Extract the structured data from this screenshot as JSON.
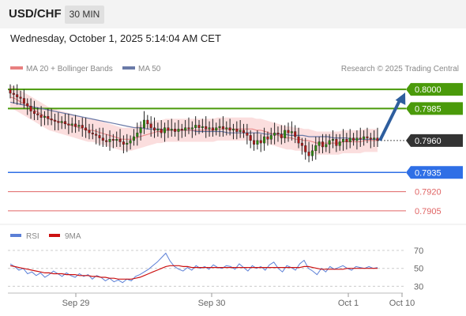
{
  "header": {
    "pair": "USD/CHF",
    "timeframe": "30 MIN"
  },
  "datetime": "Wednesday, October 1, 2025 5:14:04 AM CET",
  "legend": {
    "ma20_label": "MA 20 + Bollinger Bands",
    "ma50_label": "MA 50",
    "credit": "Research © 2025 Trading Central"
  },
  "rsi_legend": {
    "rsi_label": "RSI",
    "ma_label": "9MA"
  },
  "colors": {
    "green": "#4a9a0a",
    "blue": "#2f6fe6",
    "red": "#e06464",
    "ma20": "#e88080",
    "ma50": "#6a7aa8",
    "rsi": "#5b7fd6",
    "rsi_ma": "#cc1111",
    "band": "#f9d3d3",
    "candle_up": "#2e8b10",
    "candle_down": "#b01818",
    "arrow": "#2e5e9e",
    "price_box": "#333333"
  },
  "chart_data": [
    {
      "type": "candlestick",
      "title": "USD/CHF 30 MIN",
      "x_ticks": [
        "Sep 29",
        "Sep 30",
        "Oct 1",
        "Oct 10"
      ],
      "ylim": [
        0.7895,
        0.801
      ],
      "price_levels": [
        {
          "value": 0.8,
          "label": "0.8000",
          "style": "green",
          "boxed": true
        },
        {
          "value": 0.7985,
          "label": "0.7985",
          "style": "green",
          "boxed": true
        },
        {
          "value": 0.796,
          "label": "0.7960",
          "style": "current",
          "boxed": true
        },
        {
          "value": 0.7935,
          "label": "0.7935",
          "style": "blue",
          "boxed": true
        },
        {
          "value": 0.792,
          "label": "0.7920",
          "style": "red",
          "boxed": false
        },
        {
          "value": 0.7905,
          "label": "0.7905",
          "style": "red",
          "boxed": false
        }
      ],
      "closes": [
        0.7997,
        0.7996,
        0.7994,
        0.7993,
        0.7989,
        0.7987,
        0.7983,
        0.7981,
        0.798,
        0.7978,
        0.7979,
        0.7977,
        0.7976,
        0.7975,
        0.7974,
        0.7975,
        0.7973,
        0.7972,
        0.7973,
        0.7971,
        0.7972,
        0.797,
        0.7968,
        0.7966,
        0.7965,
        0.7964,
        0.7962,
        0.796,
        0.7959,
        0.7961,
        0.796,
        0.7961,
        0.7959,
        0.7957,
        0.7958,
        0.796,
        0.7963,
        0.7966,
        0.797,
        0.7976,
        0.7973,
        0.797,
        0.7968,
        0.7969,
        0.7966,
        0.797,
        0.7968,
        0.7969,
        0.7967,
        0.7969,
        0.7968,
        0.797,
        0.7969,
        0.797,
        0.7972,
        0.797,
        0.7971,
        0.7969,
        0.797,
        0.7968,
        0.797,
        0.7971,
        0.7969,
        0.797,
        0.7968,
        0.7969,
        0.7967,
        0.7968,
        0.7966,
        0.7964,
        0.796,
        0.7957,
        0.796,
        0.7958,
        0.7963,
        0.7961,
        0.7964,
        0.7966,
        0.7965,
        0.7962,
        0.7968,
        0.7966,
        0.7967,
        0.7963,
        0.7958,
        0.7956,
        0.7951,
        0.7948,
        0.7952,
        0.7956,
        0.7959,
        0.7955,
        0.7957,
        0.796,
        0.7961,
        0.7956,
        0.7959,
        0.7961,
        0.7959,
        0.7962,
        0.796,
        0.7962,
        0.7961,
        0.7963,
        0.7962,
        0.7961,
        0.7962,
        0.796
      ],
      "ma20": [
        0.7994,
        0.7993,
        0.7991,
        0.7989,
        0.7987,
        0.7985,
        0.7983,
        0.7981,
        0.7979,
        0.7977,
        0.7976,
        0.7975,
        0.7974,
        0.7973,
        0.7972,
        0.7971,
        0.797,
        0.7969,
        0.7968,
        0.7968,
        0.7967,
        0.7966,
        0.7965,
        0.7964,
        0.7963,
        0.7962,
        0.7961,
        0.7961,
        0.7961,
        0.7962,
        0.7963,
        0.7964,
        0.7965,
        0.7966,
        0.7967,
        0.7967,
        0.7968,
        0.7968,
        0.7968,
        0.7968,
        0.7968,
        0.7968,
        0.7968,
        0.7968,
        0.7968,
        0.7968,
        0.7968,
        0.7968,
        0.7969,
        0.7969,
        0.7969,
        0.7969,
        0.7969,
        0.7969,
        0.7969,
        0.7969,
        0.7969,
        0.7968,
        0.7968,
        0.7967,
        0.7966,
        0.7965,
        0.7964,
        0.7963,
        0.7962,
        0.7962,
        0.7961,
        0.7961,
        0.796,
        0.796,
        0.7959,
        0.7958,
        0.7958,
        0.7958,
        0.7958,
        0.7958,
        0.7958,
        0.7959,
        0.7959,
        0.7959,
        0.7959,
        0.7959,
        0.796,
        0.796,
        0.796,
        0.796
      ],
      "ma50": [
        0.799,
        0.7989,
        0.7988,
        0.7987,
        0.7986,
        0.7985,
        0.7984,
        0.7983,
        0.7982,
        0.7981,
        0.798,
        0.7979,
        0.7978,
        0.7977,
        0.7976,
        0.7975,
        0.7974,
        0.7973,
        0.7972,
        0.7971,
        0.797,
        0.797,
        0.7969,
        0.7969,
        0.7969,
        0.7968,
        0.7968,
        0.7968,
        0.7968,
        0.7968,
        0.7967,
        0.7967,
        0.7967,
        0.7967,
        0.7967,
        0.7966,
        0.7966,
        0.7966,
        0.7966,
        0.7966,
        0.7966,
        0.7965,
        0.7965,
        0.7965,
        0.7965,
        0.7964,
        0.7964,
        0.7964,
        0.7963,
        0.7963,
        0.7963,
        0.7963,
        0.7962,
        0.7962,
        0.7962,
        0.7961,
        0.7961,
        0.7961,
        0.7961,
        0.7961
      ],
      "band_width": 0.0009
    },
    {
      "type": "line",
      "title": "RSI",
      "yticks": [
        70,
        50,
        30
      ],
      "ylim": [
        25,
        78
      ],
      "series": [
        {
          "name": "RSI",
          "values": [
            55,
            52,
            48,
            50,
            44,
            46,
            42,
            45,
            40,
            43,
            47,
            44,
            41,
            45,
            42,
            40,
            44,
            41,
            43,
            38,
            42,
            40,
            36,
            39,
            35,
            37,
            34,
            38,
            36,
            41,
            43,
            46,
            49,
            53,
            57,
            62,
            67,
            58,
            52,
            49,
            47,
            51,
            48,
            53,
            50,
            52,
            49,
            54,
            51,
            50,
            53,
            52,
            49,
            55,
            51,
            47,
            53,
            50,
            52,
            48,
            54,
            57,
            50,
            46,
            53,
            51,
            48,
            55,
            59,
            50,
            47,
            43,
            50,
            46,
            52,
            49,
            51,
            53,
            50,
            48,
            52,
            51,
            50,
            52,
            50,
            51
          ]
        },
        {
          "name": "9MA",
          "values": [
            53,
            52,
            51,
            50,
            49,
            48,
            47,
            46,
            45,
            45,
            44,
            44,
            44,
            43,
            43,
            43,
            42,
            42,
            42,
            41,
            41,
            40,
            40,
            39,
            39,
            38,
            38,
            38,
            38,
            39,
            40,
            42,
            44,
            46,
            48,
            50,
            52,
            53,
            53,
            53,
            52,
            52,
            51,
            51,
            51,
            51,
            51,
            51,
            51,
            51,
            51,
            51,
            51,
            51,
            51,
            51,
            51,
            51,
            51,
            51,
            51,
            51,
            51,
            51,
            51,
            51,
            51,
            51,
            52,
            52,
            51,
            50,
            49,
            49,
            49,
            49,
            49,
            49,
            50,
            50,
            50,
            50,
            50,
            50,
            50,
            50
          ]
        }
      ]
    }
  ]
}
